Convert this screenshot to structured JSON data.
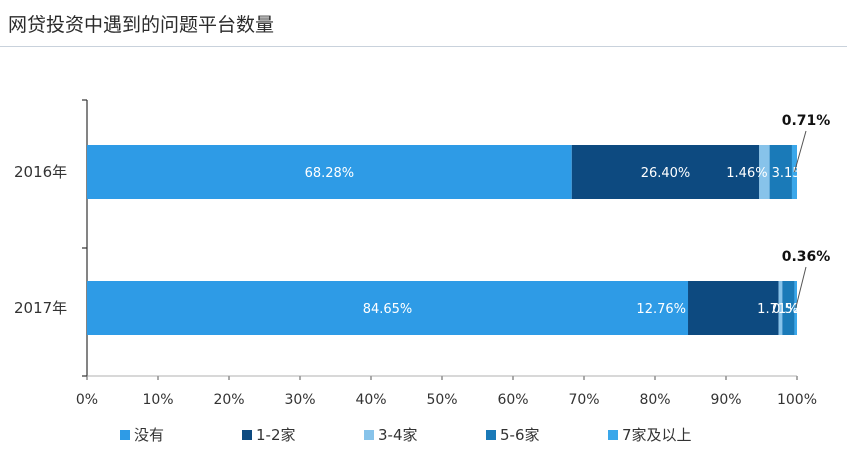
{
  "title": "网贷投资中遇到的问题平台数量",
  "chart_data": {
    "type": "bar",
    "orientation": "horizontal",
    "stacked": true,
    "categories": [
      "2016年",
      "2017年"
    ],
    "series": [
      {
        "name": "没有",
        "color": "#2e9be6",
        "values": [
          68.28,
          84.65
        ],
        "labels": [
          "68.28%",
          "84.65%"
        ]
      },
      {
        "name": "1-2家",
        "color": "#0d4a80",
        "values": [
          26.4,
          12.76
        ],
        "labels": [
          "26.40%",
          "12.76%"
        ]
      },
      {
        "name": "3-4家",
        "color": "#87c3ea",
        "values": [
          1.46,
          0.52
        ],
        "labels": [
          "1.46%",
          "0.52%"
        ]
      },
      {
        "name": "5-6家",
        "color": "#1a7ab8",
        "values": [
          3.15,
          1.71
        ],
        "labels": [
          "3.15%",
          "1.71%"
        ]
      },
      {
        "name": "7家及以上",
        "color": "#3aa7ea",
        "values": [
          0.71,
          0.36
        ],
        "labels": [
          "0.71%",
          "0.36%"
        ]
      }
    ],
    "xlim": [
      0,
      100
    ],
    "xticks": [
      "0%",
      "10%",
      "20%",
      "30%",
      "40%",
      "50%",
      "60%",
      "70%",
      "80%",
      "90%",
      "100%"
    ],
    "legend_position": "bottom"
  }
}
